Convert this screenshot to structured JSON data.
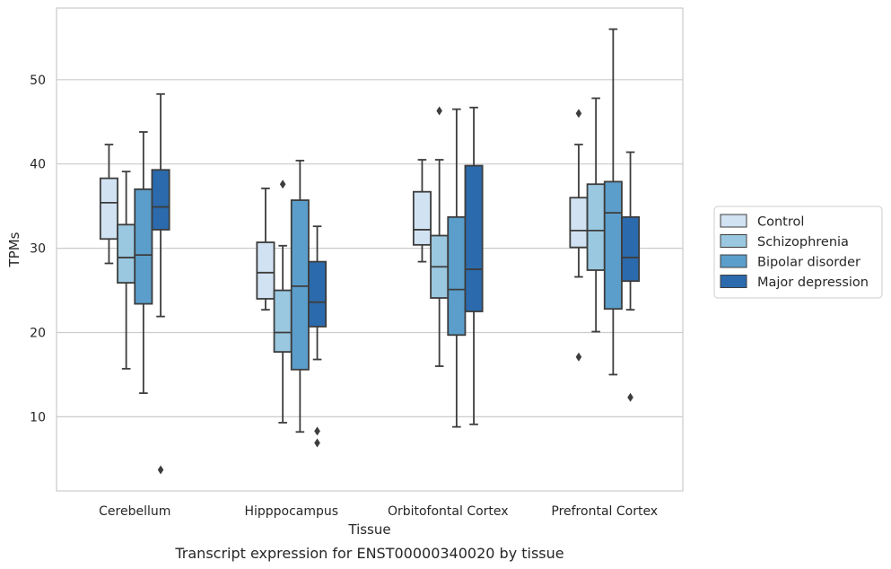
{
  "chart_data": {
    "type": "box",
    "title": "",
    "caption": "Transcript expression for ENST00000340020 by tissue",
    "xlabel": "Tissue",
    "ylabel": "TPMs",
    "categories": [
      "Cerebellum",
      "Hipppocampus",
      "Orbitofontal Cortex",
      "Prefrontal Cortex"
    ],
    "ylim": [
      1.2,
      58.5
    ],
    "yticks": [
      10,
      20,
      30,
      40,
      50
    ],
    "grid": "horizontal",
    "legend_position": "outside-right",
    "series": [
      {
        "name": "Control",
        "color": "#d1e2f2",
        "boxes": [
          {
            "whislo": 28.2,
            "q1": 31.1,
            "med": 35.4,
            "q3": 38.3,
            "whishi": 42.3,
            "fliers": []
          },
          {
            "whislo": 22.7,
            "q1": 24.0,
            "med": 27.1,
            "q3": 30.7,
            "whishi": 37.1,
            "fliers": []
          },
          {
            "whislo": 28.4,
            "q1": 30.4,
            "med": 32.2,
            "q3": 36.7,
            "whishi": 40.5,
            "fliers": []
          },
          {
            "whislo": 26.6,
            "q1": 30.1,
            "med": 32.1,
            "q3": 36.0,
            "whishi": 42.3,
            "fliers": [
              46.0,
              17.1
            ]
          }
        ]
      },
      {
        "name": "Schizophrenia",
        "color": "#9ac8e0",
        "boxes": [
          {
            "whislo": 15.7,
            "q1": 25.9,
            "med": 28.9,
            "q3": 32.8,
            "whishi": 39.1,
            "fliers": []
          },
          {
            "whislo": 9.3,
            "q1": 17.7,
            "med": 20.0,
            "q3": 25.0,
            "whishi": 30.3,
            "fliers": [
              37.6
            ]
          },
          {
            "whislo": 16.0,
            "q1": 24.1,
            "med": 27.8,
            "q3": 31.5,
            "whishi": 40.5,
            "fliers": [
              46.3
            ]
          },
          {
            "whislo": 20.1,
            "q1": 27.4,
            "med": 32.1,
            "q3": 37.6,
            "whishi": 47.8,
            "fliers": []
          }
        ]
      },
      {
        "name": "Bipolar disorder",
        "color": "#5b9ecb",
        "boxes": [
          {
            "whislo": 12.8,
            "q1": 23.4,
            "med": 29.2,
            "q3": 37.0,
            "whishi": 43.8,
            "fliers": []
          },
          {
            "whislo": 8.2,
            "q1": 15.6,
            "med": 25.5,
            "q3": 35.7,
            "whishi": 40.4,
            "fliers": []
          },
          {
            "whislo": 8.8,
            "q1": 19.7,
            "med": 25.1,
            "q3": 33.7,
            "whishi": 46.5,
            "fliers": []
          },
          {
            "whislo": 15.0,
            "q1": 22.8,
            "med": 34.2,
            "q3": 37.9,
            "whishi": 56.0,
            "fliers": []
          }
        ]
      },
      {
        "name": "Major depression",
        "color": "#2b6aac",
        "boxes": [
          {
            "whislo": 21.9,
            "q1": 32.2,
            "med": 34.9,
            "q3": 39.3,
            "whishi": 48.3,
            "fliers": [
              3.7
            ]
          },
          {
            "whislo": 16.8,
            "q1": 20.7,
            "med": 23.6,
            "q3": 28.4,
            "whishi": 32.6,
            "fliers": [
              8.3,
              6.9
            ]
          },
          {
            "whislo": 9.1,
            "q1": 22.5,
            "med": 27.5,
            "q3": 39.8,
            "whishi": 46.7,
            "fliers": []
          },
          {
            "whislo": 22.7,
            "q1": 26.1,
            "med": 28.9,
            "q3": 33.7,
            "whishi": 41.4,
            "fliers": [
              12.3
            ]
          }
        ]
      }
    ]
  }
}
